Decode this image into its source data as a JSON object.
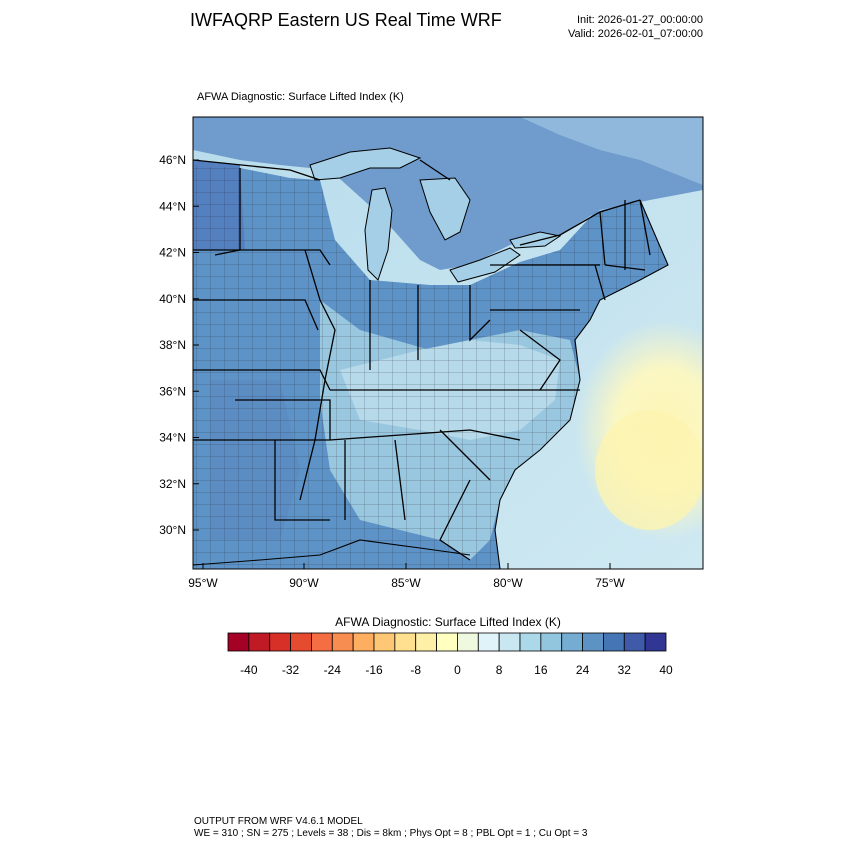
{
  "header": {
    "title": "IWFAQRP Eastern US Real Time WRF",
    "init": "Init: 2026-01-27_00:00:00",
    "valid": "Valid: 2026-02-01_07:00:00"
  },
  "map": {
    "field_title": "AFWA Diagnostic: Surface Lifted Index   (K)",
    "lat_labels": [
      "46°N",
      "44°N",
      "42°N",
      "40°N",
      "38°N",
      "36°N",
      "34°N",
      "32°N",
      "30°N"
    ],
    "lon_labels": [
      "95°W",
      "90°W",
      "85°W",
      "80°W",
      "75°W"
    ]
  },
  "colorbar": {
    "title": "AFWA Diagnostic: Surface Lifted Index  (K)",
    "colors": [
      "#a50026",
      "#c01a27",
      "#d73027",
      "#e54b2f",
      "#f46d43",
      "#f88d52",
      "#fdae61",
      "#fec776",
      "#fee090",
      "#fff0a8",
      "#ffffbf",
      "#eef9e0",
      "#e0f3f8",
      "#c8e7f1",
      "#abd9e9",
      "#92c5de",
      "#74add1",
      "#5d92c4",
      "#4575b4",
      "#3e5aa8",
      "#313695"
    ],
    "labels": [
      "-40",
      "-32",
      "-24",
      "-16",
      "-8",
      "0",
      "8",
      "16",
      "24",
      "32",
      "40"
    ]
  },
  "footer": {
    "line1": "OUTPUT FROM WRF V4.6.1 MODEL",
    "line2": "WE = 310 ; SN = 275 ; Levels = 38 ; Dis = 8km ; Phys Opt = 8 ; PBL Opt = 1 ; Cu Opt = 3"
  }
}
